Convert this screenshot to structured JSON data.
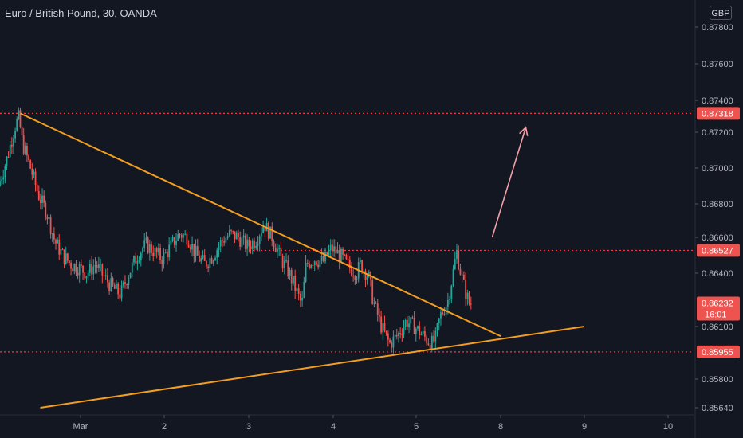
{
  "header": {
    "title": "Euro / British Pound, 30, OANDA",
    "currency": "GBP"
  },
  "colors": {
    "background": "#131722",
    "up": "#26a69a",
    "down": "#ef5350",
    "trendline": "#f59d1e",
    "level": "#f23645",
    "arrow": "#f4a0a8",
    "axis_text": "#b2b5be"
  },
  "chart_data": {
    "type": "candlestick",
    "title": "Euro / British Pound, 30, OANDA",
    "y_ticks": [
      "0.87800",
      "0.87600",
      "0.87400",
      "0.87200",
      "0.87000",
      "0.86800",
      "0.86600",
      "0.86400",
      "0.86100",
      "0.85800",
      "0.85640"
    ],
    "x_ticks": [
      {
        "label": "Mar",
        "day": 1
      },
      {
        "label": "2",
        "day": 2
      },
      {
        "label": "3",
        "day": 3
      },
      {
        "label": "4",
        "day": 4
      },
      {
        "label": "5",
        "day": 5
      },
      {
        "label": "8",
        "day": 6
      },
      {
        "label": "9",
        "day": 7
      },
      {
        "label": "10",
        "day": 8
      }
    ],
    "price_labels": [
      {
        "label": "0.87318",
        "value": 0.87318
      },
      {
        "label": "0.86527",
        "value": 0.86527
      },
      {
        "label": "0.86232",
        "value": 0.86232,
        "sub": "16:01"
      },
      {
        "label": "0.85955",
        "value": 0.85955
      }
    ],
    "levels": [
      {
        "value": 0.87318,
        "x_start_day": 0.0
      },
      {
        "value": 0.86527,
        "x_start_day": 3.0
      },
      {
        "value": 0.85955,
        "x_start_day": 0.0
      }
    ],
    "trendlines": [
      {
        "name": "upper",
        "x1": 0.25,
        "y1": 0.87318,
        "x2": 6.0,
        "y2": 0.86045
      },
      {
        "name": "lower",
        "x1": 0.5,
        "y1": 0.8564,
        "x2": 7.0,
        "y2": 0.861
      }
    ],
    "arrow": {
      "x1": 5.9,
      "y1": 0.866,
      "x2": 6.3,
      "y2": 0.8723
    },
    "path": [
      [
        0.0,
        0.869
      ],
      [
        0.1,
        0.8704
      ],
      [
        0.2,
        0.8722
      ],
      [
        0.25,
        0.873
      ],
      [
        0.3,
        0.8714
      ],
      [
        0.4,
        0.87
      ],
      [
        0.5,
        0.8685
      ],
      [
        0.6,
        0.8675
      ],
      [
        0.7,
        0.8658
      ],
      [
        0.8,
        0.865
      ],
      [
        0.9,
        0.8645
      ],
      [
        1.0,
        0.8643
      ],
      [
        1.1,
        0.864
      ],
      [
        1.2,
        0.8645
      ],
      [
        1.3,
        0.8638
      ],
      [
        1.4,
        0.8632
      ],
      [
        1.5,
        0.8628
      ],
      [
        1.6,
        0.864
      ],
      [
        1.7,
        0.865
      ],
      [
        1.8,
        0.8656
      ],
      [
        1.9,
        0.8652
      ],
      [
        2.0,
        0.8648
      ],
      [
        2.1,
        0.8655
      ],
      [
        2.2,
        0.8662
      ],
      [
        2.3,
        0.866
      ],
      [
        2.4,
        0.865
      ],
      [
        2.5,
        0.8645
      ],
      [
        2.6,
        0.865
      ],
      [
        2.7,
        0.8658
      ],
      [
        2.8,
        0.8662
      ],
      [
        2.9,
        0.866
      ],
      [
        3.0,
        0.8655
      ],
      [
        3.1,
        0.8658
      ],
      [
        3.2,
        0.8668
      ],
      [
        3.3,
        0.866
      ],
      [
        3.4,
        0.8648
      ],
      [
        3.5,
        0.864
      ],
      [
        3.6,
        0.8628
      ],
      [
        3.65,
        0.8622
      ],
      [
        3.7,
        0.8645
      ],
      [
        3.8,
        0.8648
      ],
      [
        3.9,
        0.8646
      ],
      [
        4.0,
        0.8654
      ],
      [
        4.1,
        0.865
      ],
      [
        4.2,
        0.8644
      ],
      [
        4.3,
        0.864
      ],
      [
        4.35,
        0.8645
      ],
      [
        4.45,
        0.8638
      ],
      [
        4.5,
        0.8625
      ],
      [
        4.6,
        0.861
      ],
      [
        4.7,
        0.86
      ],
      [
        4.8,
        0.8605
      ],
      [
        4.9,
        0.8613
      ],
      [
        5.0,
        0.861
      ],
      [
        5.1,
        0.8605
      ],
      [
        5.2,
        0.86
      ],
      [
        5.25,
        0.8603
      ],
      [
        5.3,
        0.8615
      ],
      [
        5.4,
        0.8625
      ],
      [
        5.45,
        0.8638
      ],
      [
        5.5,
        0.8652
      ],
      [
        5.55,
        0.864
      ],
      [
        5.6,
        0.863
      ],
      [
        5.65,
        0.8623
      ]
    ]
  }
}
